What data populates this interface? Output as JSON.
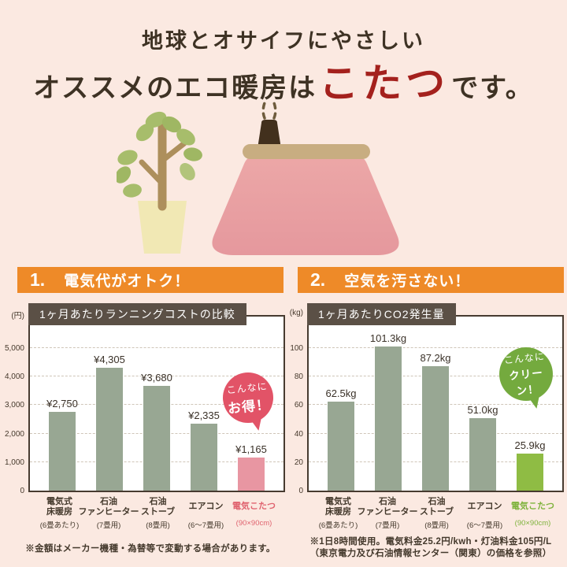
{
  "header": {
    "line1": "地球とオサイフにやさしい",
    "line2_prefix": "オススメのエコ暖房は",
    "line2_highlight": "こたつ",
    "line2_suffix": "です。",
    "highlight_color": "#a4211d"
  },
  "illustration": {
    "items": [
      "potted-plant",
      "kotatsu-blanket",
      "kotatsu-tabletop",
      "teapot",
      "steam"
    ]
  },
  "sections": {
    "left": {
      "number": "1.",
      "title": "電気代がオトク！"
    },
    "right": {
      "number": "2.",
      "title": "空気を汚さない！"
    },
    "bar_color": "#ee8a28"
  },
  "chart_data": [
    {
      "type": "bar",
      "title": "1ヶ月あたりランニングコストの比較",
      "unit": "(円)",
      "ylim": [
        0,
        5000
      ],
      "yticks": [
        "5,000",
        "4,000",
        "3,000",
        "2,000",
        "1,000",
        "0"
      ],
      "grid": "dashed-horizontal",
      "legend": "none",
      "categories": [
        "電気式床暖房",
        "石油ファンヒーター",
        "石油ストーブ",
        "エアコン",
        "電気こたつ"
      ],
      "category_lines": [
        [
          "電気式",
          "床暖房"
        ],
        [
          "石油",
          "ファンヒーター"
        ],
        [
          "石油",
          "ストーブ"
        ],
        [
          "エアコン"
        ],
        [
          "電気こたつ"
        ]
      ],
      "category_notes": [
        "(6畳あたり)",
        "(7畳用)",
        "(8畳用)",
        "(6～7畳用)",
        "(90×90cm)"
      ],
      "values": [
        2750,
        4305,
        3680,
        2335,
        1165
      ],
      "value_labels": [
        "¥2,750",
        "¥4,305",
        "¥3,680",
        "¥2,335",
        "¥1,165"
      ],
      "bar_color_default": "#98a793",
      "bar_color_highlight": "#e896a2",
      "highlight_index": 4,
      "xlabel_highlight_color": "#e0636f",
      "badge": {
        "line1": "こんなに",
        "line2": "お得！",
        "color": "#e25367"
      }
    },
    {
      "type": "bar",
      "title": "1ヶ月あたりCO2発生量",
      "unit": "(kg)",
      "ylim": [
        0,
        100
      ],
      "yticks": [
        "100",
        "80",
        "60",
        "40",
        "20",
        "0"
      ],
      "grid": "dashed-horizontal",
      "legend": "none",
      "categories": [
        "電気式床暖房",
        "石油ファンヒーター",
        "石油ストーブ",
        "エアコン",
        "電気こたつ"
      ],
      "category_lines": [
        [
          "電気式",
          "床暖房"
        ],
        [
          "石油",
          "ファンヒーター"
        ],
        [
          "石油",
          "ストーブ"
        ],
        [
          "エアコン"
        ],
        [
          "電気こたつ"
        ]
      ],
      "category_notes": [
        "(6畳あたり)",
        "(7畳用)",
        "(8畳用)",
        "(6～7畳用)",
        "(90×90cm)"
      ],
      "values": [
        62.5,
        101.3,
        87.2,
        51.0,
        25.9
      ],
      "value_labels": [
        "62.5kg",
        "101.3kg",
        "87.2kg",
        "51.0kg",
        "25.9kg"
      ],
      "bar_color_default": "#98a793",
      "bar_color_highlight": "#8fbc44",
      "highlight_index": 4,
      "xlabel_highlight_color": "#7fb33d",
      "badge": {
        "line1": "こんなに",
        "line2": "クリーン！",
        "color": "#74aa3e"
      }
    }
  ],
  "footnotes": {
    "left": "※金額はメーカー機種・為替等で変動する場合があります。",
    "right_line1": "※1日8時間使用。電気料金25.2円/kwh・灯油料金105円/L",
    "right_line2": "（東京電力及び石油情報センター（関東）の価格を参照）"
  }
}
